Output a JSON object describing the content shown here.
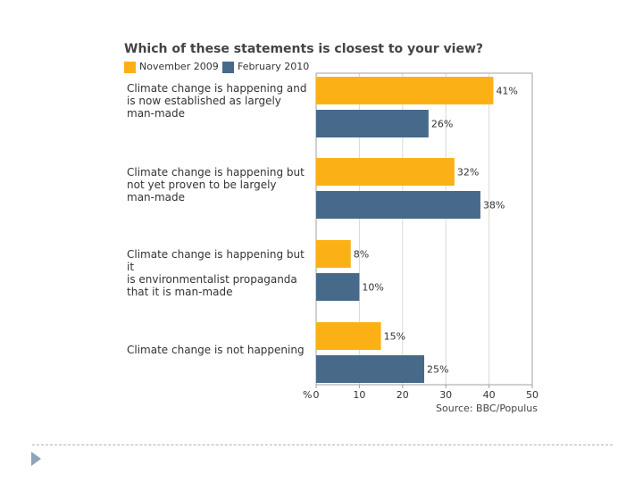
{
  "chart_data": {
    "type": "bar",
    "orientation": "horizontal",
    "title": "Which of these statements is closest to your view?",
    "categories": [
      "Climate change is happening and is now established as largely man-made",
      "Climate change is happening but not yet proven to be largely man-made",
      "Climate change is happening but it is environmentalist propaganda that it is man-made",
      "Climate change is not happening"
    ],
    "category_lines": [
      [
        "Climate change is happening and",
        "is now established as largely",
        "man-made"
      ],
      [
        "Climate change is happening but",
        "not yet proven to be largely",
        "man-made"
      ],
      [
        "Climate change is happening but it",
        "is environmentalist propaganda",
        "that it is man-made"
      ],
      [
        "Climate change is not happening"
      ]
    ],
    "series": [
      {
        "name": "November 2009",
        "color": "#fbb116",
        "values": [
          41,
          32,
          8,
          15
        ]
      },
      {
        "name": "February 2010",
        "color": "#47698a",
        "values": [
          26,
          38,
          10,
          25
        ]
      }
    ],
    "value_suffix": "%",
    "xlabel": "%",
    "xlim": [
      0,
      50
    ],
    "xticks": [
      0,
      10,
      20,
      30,
      40,
      50
    ],
    "grid": true,
    "legend_position": "top-left",
    "source": "Source: BBC/Populus"
  }
}
